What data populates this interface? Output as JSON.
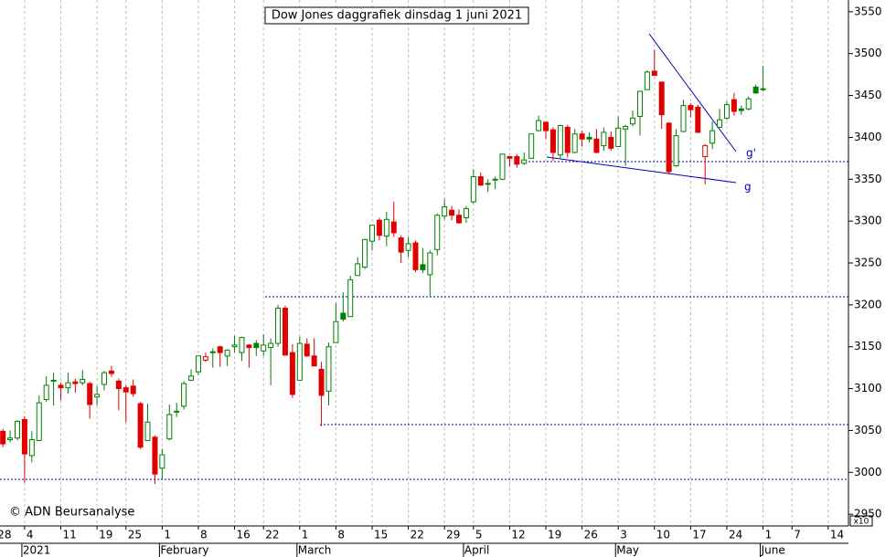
{
  "chart_data": {
    "type": "candlestick",
    "title": "Dow Jones daggrafiek dinsdag 1 juni 2021",
    "copyright": "© ADN Beursanalyse",
    "axis_multiplier": "x10",
    "annotations": [
      "g'",
      "g"
    ],
    "up_color": "#008000",
    "down_color": "#e00000",
    "ylim": [
      2936,
      3564
    ],
    "yticks": [
      2950,
      3000,
      3050,
      3100,
      3150,
      3200,
      3250,
      3300,
      3350,
      3400,
      3450,
      3500,
      3550
    ],
    "xlim": [
      -0.4,
      116.8
    ],
    "xticks": [
      {
        "value": -1,
        "label": "28"
      },
      {
        "value": 3,
        "label": "4"
      },
      {
        "value": 8,
        "label": "11"
      },
      {
        "value": 13,
        "label": "19"
      },
      {
        "value": 17,
        "label": "25"
      },
      {
        "value": 22,
        "label": "1"
      },
      {
        "value": 27,
        "label": "8"
      },
      {
        "value": 32,
        "label": "16"
      },
      {
        "value": 36,
        "label": "22"
      },
      {
        "value": 41,
        "label": "1"
      },
      {
        "value": 46,
        "label": "8"
      },
      {
        "value": 51,
        "label": "15"
      },
      {
        "value": 56,
        "label": "22"
      },
      {
        "value": 61,
        "label": "29"
      },
      {
        "value": 65,
        "label": "5"
      },
      {
        "value": 70,
        "label": "12"
      },
      {
        "value": 75,
        "label": "19"
      },
      {
        "value": 80,
        "label": "26"
      },
      {
        "value": 85,
        "label": "3"
      },
      {
        "value": 90,
        "label": "10"
      },
      {
        "value": 95,
        "label": "17"
      },
      {
        "value": 100,
        "label": "24"
      },
      {
        "value": 105,
        "label": "1"
      },
      {
        "value": 109,
        "label": "7"
      },
      {
        "value": 114,
        "label": "14"
      }
    ],
    "month_ticks": [
      {
        "value": 3,
        "label": "2021"
      },
      {
        "value": 22,
        "label": "February"
      },
      {
        "value": 41,
        "label": "March"
      },
      {
        "value": 64,
        "label": "April"
      },
      {
        "value": 85,
        "label": "May"
      },
      {
        "value": 105,
        "label": "June"
      }
    ],
    "ohlc": [
      [
        3049,
        3052,
        3030,
        3034
      ],
      [
        3039,
        3050,
        3036,
        3041
      ],
      [
        3041,
        3062,
        3038,
        3061
      ],
      [
        3063,
        3067,
        2988,
        3022
      ],
      [
        3020,
        3049,
        3012,
        3039
      ],
      [
        3038,
        3092,
        3038,
        3083
      ],
      [
        3087,
        3115,
        3084,
        3104
      ],
      [
        3110,
        3119,
        3080,
        3110
      ],
      [
        3104,
        3107,
        3086,
        3101
      ],
      [
        3101,
        3119,
        3094,
        3107
      ],
      [
        3108,
        3112,
        3095,
        3106
      ],
      [
        3107,
        3122,
        3104,
        3111
      ],
      [
        3106,
        3108,
        3064,
        3081
      ],
      [
        3090,
        3103,
        3080,
        3093
      ],
      [
        3105,
        3121,
        3098,
        3119
      ],
      [
        3121,
        3127,
        3114,
        3118
      ],
      [
        3109,
        3112,
        3074,
        3100
      ],
      [
        3101,
        3104,
        3060,
        3096
      ],
      [
        3103,
        3111,
        3090,
        3094
      ],
      [
        3082,
        3084,
        3028,
        3030
      ],
      [
        3038,
        3082,
        3038,
        3060
      ],
      [
        3042,
        3044,
        2986,
        2998
      ],
      [
        3005,
        3028,
        2992,
        3021
      ],
      [
        3040,
        3081,
        3038,
        3069
      ],
      [
        3073,
        3083,
        3066,
        3072
      ],
      [
        3079,
        3109,
        3075,
        3106
      ],
      [
        3110,
        3123,
        3109,
        3115
      ],
      [
        3120,
        3139,
        3116,
        3139
      ],
      [
        3134,
        3143,
        3132,
        3138
      ],
      [
        3144,
        3148,
        3125,
        3144
      ],
      [
        3150,
        3151,
        3126,
        3143
      ],
      [
        3139,
        3147,
        3127,
        3146
      ],
      [
        3150,
        3163,
        3143,
        3152
      ],
      [
        3143,
        3162,
        3133,
        3161
      ],
      [
        3152,
        3153,
        3125,
        3149
      ],
      [
        3154,
        3158,
        3139,
        3149
      ],
      [
        3145,
        3165,
        3139,
        3152
      ],
      [
        3149,
        3160,
        3104,
        3154
      ],
      [
        3154,
        3200,
        3150,
        3196
      ],
      [
        3196,
        3199,
        3140,
        3140
      ],
      [
        3143,
        3153,
        3089,
        3093
      ],
      [
        3110,
        3162,
        3110,
        3154
      ],
      [
        3153,
        3160,
        3138,
        3139
      ],
      [
        3139,
        3160,
        3127,
        3127
      ],
      [
        3123,
        3132,
        3055,
        3092
      ],
      [
        3097,
        3155,
        3080,
        3150
      ],
      [
        3155,
        3202,
        3155,
        3180
      ],
      [
        3190,
        3215,
        3180,
        3183
      ],
      [
        3186,
        3235,
        3186,
        3230
      ],
      [
        3235,
        3257,
        3235,
        3249
      ],
      [
        3245,
        3279,
        3243,
        3278
      ],
      [
        3276,
        3296,
        3265,
        3295
      ],
      [
        3301,
        3304,
        3277,
        3283
      ],
      [
        3282,
        3311,
        3270,
        3302
      ],
      [
        3299,
        3323,
        3281,
        3286
      ],
      [
        3280,
        3283,
        3250,
        3263
      ],
      [
        3265,
        3281,
        3257,
        3273
      ],
      [
        3274,
        3277,
        3239,
        3242
      ],
      [
        3248,
        3268,
        3238,
        3242
      ],
      [
        3236,
        3265,
        3209,
        3262
      ],
      [
        3266,
        3309,
        3259,
        3307
      ],
      [
        3306,
        3326,
        3302,
        3317
      ],
      [
        3313,
        3318,
        3301,
        3307
      ],
      [
        3307,
        3314,
        3297,
        3298
      ],
      [
        3304,
        3318,
        3298,
        3315
      ],
      [
        3323,
        3362,
        3321,
        3353
      ],
      [
        3353,
        3358,
        3342,
        3343
      ],
      [
        3344,
        3350,
        3335,
        3345
      ],
      [
        3349,
        3353,
        3338,
        3350
      ],
      [
        3350,
        3380,
        3349,
        3380
      ],
      [
        3377,
        3377,
        3365,
        3375
      ],
      [
        3377,
        3380,
        3364,
        3368
      ],
      [
        3369,
        3382,
        3367,
        3373
      ],
      [
        3375,
        3404,
        3375,
        3404
      ],
      [
        3408,
        3426,
        3407,
        3420
      ],
      [
        3418,
        3419,
        3398,
        3408
      ],
      [
        3409,
        3412,
        3372,
        3382
      ],
      [
        3379,
        3415,
        3374,
        3414
      ],
      [
        3412,
        3415,
        3376,
        3382
      ],
      [
        3382,
        3410,
        3381,
        3404
      ],
      [
        3404,
        3408,
        3389,
        3398
      ],
      [
        3400,
        3406,
        3394,
        3398
      ],
      [
        3398,
        3410,
        3381,
        3382
      ],
      [
        3390,
        3412,
        3384,
        3406
      ],
      [
        3400,
        3407,
        3384,
        3387
      ],
      [
        3389,
        3425,
        3389,
        3411
      ],
      [
        3410,
        3415,
        3366,
        3413
      ],
      [
        3416,
        3432,
        3413,
        3423
      ],
      [
        3425,
        3455,
        3402,
        3455
      ],
      [
        3457,
        3480,
        3457,
        3478
      ],
      [
        3479,
        3504,
        3474,
        3474
      ],
      [
        3466,
        3466,
        3410,
        3427
      ],
      [
        3417,
        3418,
        3356,
        3359
      ],
      [
        3366,
        3410,
        3365,
        3402
      ],
      [
        3407,
        3445,
        3406,
        3438
      ],
      [
        3438,
        3441,
        3424,
        3433
      ],
      [
        3436,
        3439,
        3405,
        3406
      ],
      [
        3377,
        3392,
        3344,
        3390
      ],
      [
        3393,
        3419,
        3386,
        3408
      ],
      [
        3412,
        3434,
        3413,
        3421
      ],
      [
        3423,
        3443,
        3421,
        3439
      ],
      [
        3445,
        3453,
        3426,
        3431
      ],
      [
        3434,
        3438,
        3427,
        3432
      ],
      [
        3434,
        3449,
        3432,
        3446
      ],
      [
        3460,
        3463,
        3452,
        3453
      ],
      [
        3457,
        3485,
        3455,
        3458
      ]
    ]
  }
}
